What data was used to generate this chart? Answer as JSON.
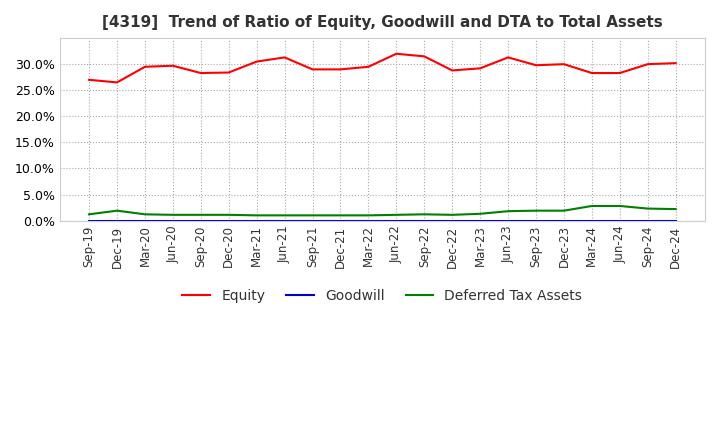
{
  "title": "[4319]  Trend of Ratio of Equity, Goodwill and DTA to Total Assets",
  "x_labels": [
    "Sep-19",
    "Dec-19",
    "Mar-20",
    "Jun-20",
    "Sep-20",
    "Dec-20",
    "Mar-21",
    "Jun-21",
    "Sep-21",
    "Dec-21",
    "Mar-22",
    "Jun-22",
    "Sep-22",
    "Dec-22",
    "Mar-23",
    "Jun-23",
    "Sep-23",
    "Dec-23",
    "Mar-24",
    "Jun-24",
    "Sep-24",
    "Dec-24"
  ],
  "equity": [
    0.27,
    0.265,
    0.295,
    0.297,
    0.283,
    0.284,
    0.305,
    0.313,
    0.29,
    0.29,
    0.295,
    0.32,
    0.315,
    0.288,
    0.292,
    0.313,
    0.298,
    0.3,
    0.283,
    0.283,
    0.3,
    0.302
  ],
  "goodwill": [
    0.0,
    0.0,
    0.0,
    0.0,
    0.0,
    0.0,
    0.0,
    0.0,
    0.0,
    0.0,
    0.0,
    0.0,
    0.0,
    0.0,
    0.0,
    0.0,
    0.0,
    0.0,
    0.0,
    0.0,
    0.0,
    0.0
  ],
  "dta": [
    0.012,
    0.019,
    0.012,
    0.011,
    0.011,
    0.011,
    0.01,
    0.01,
    0.01,
    0.01,
    0.01,
    0.011,
    0.012,
    0.011,
    0.013,
    0.018,
    0.019,
    0.019,
    0.028,
    0.028,
    0.023,
    0.022
  ],
  "equity_color": "#ff0000",
  "goodwill_color": "#0000cc",
  "dta_color": "#008000",
  "ylim": [
    0.0,
    0.35
  ],
  "yticks": [
    0.0,
    0.05,
    0.1,
    0.15,
    0.2,
    0.25,
    0.3
  ],
  "background_color": "#ffffff",
  "title_fontsize": 11,
  "grid_color": "#aaaaaa",
  "line_width": 1.5
}
